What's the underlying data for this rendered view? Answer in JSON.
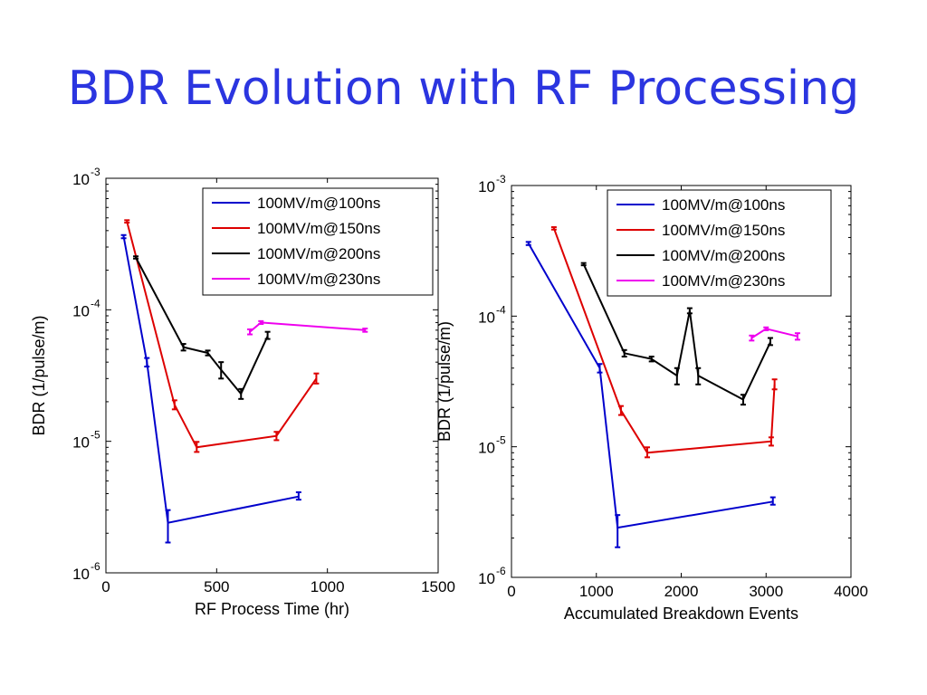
{
  "slide": {
    "title": "BDR Evolution with RF Processing"
  },
  "chart_data": [
    {
      "type": "line",
      "xlabel": "RF Process Time (hr)",
      "ylabel": "BDR (1/pulse/m)",
      "xlim": [
        0,
        1500
      ],
      "ylim": [
        1e-06,
        0.001
      ],
      "yscale": "log",
      "x_ticks": [
        "0",
        "500",
        "1000",
        "1500"
      ],
      "y_ticks": [
        {
          "base": "10",
          "exp": "-3"
        },
        {
          "base": "10",
          "exp": "-4"
        },
        {
          "base": "10",
          "exp": "-5"
        },
        {
          "base": "10",
          "exp": "-6"
        }
      ],
      "grid": false,
      "legend": "top-right",
      "series": [
        {
          "name": "100MV/m@100ns",
          "color": "#0000cc",
          "x": [
            80,
            185,
            280,
            870
          ],
          "y": [
            0.00036,
            4e-05,
            2.4e-06,
            3.8e-06
          ],
          "err_lo": [
            0.00035,
            3.7e-05,
            1.7e-06,
            3.6e-06
          ],
          "err_hi": [
            0.00037,
            4.3e-05,
            3e-06,
            4.1e-06
          ]
        },
        {
          "name": "100MV/m@150ns",
          "color": "#dd0000",
          "x": [
            95,
            310,
            410,
            770,
            950
          ],
          "y": [
            0.00047,
            1.9e-05,
            9e-06,
            1.1e-05,
            3e-05
          ],
          "err_lo": [
            0.00046,
            1.75e-05,
            8.3e-06,
            1.02e-05,
            2.75e-05
          ],
          "err_hi": [
            0.00048,
            2.05e-05,
            9.9e-06,
            1.18e-05,
            3.28e-05
          ]
        },
        {
          "name": "100MV/m@200ns",
          "color": "#000000",
          "x": [
            135,
            350,
            460,
            520,
            610,
            730
          ],
          "y": [
            0.00025,
            5.2e-05,
            4.7e-05,
            3.5e-05,
            2.3e-05,
            6.3e-05
          ],
          "err_lo": [
            0.000245,
            4.9e-05,
            4.5e-05,
            3e-05,
            2.1e-05,
            6e-05
          ],
          "err_hi": [
            0.000255,
            5.5e-05,
            4.9e-05,
            4e-05,
            2.5e-05,
            6.8e-05
          ]
        },
        {
          "name": "100MV/m@230ns",
          "color": "#ee00ee",
          "x": [
            650,
            700,
            1170
          ],
          "y": [
            6.8e-05,
            8e-05,
            7e-05
          ],
          "err_lo": [
            6.5e-05,
            7.8e-05,
            6.8e-05
          ],
          "err_hi": [
            7.1e-05,
            8.2e-05,
            7.2e-05
          ]
        }
      ]
    },
    {
      "type": "line",
      "xlabel": "Accumulated Breakdown Events",
      "ylabel": "BDR (1/pulse/m)",
      "xlim": [
        0,
        4000
      ],
      "ylim": [
        1e-06,
        0.001
      ],
      "yscale": "log",
      "x_ticks": [
        "0",
        "1000",
        "2000",
        "3000",
        "4000"
      ],
      "y_ticks": [
        {
          "base": "10",
          "exp": "-3"
        },
        {
          "base": "10",
          "exp": "-4"
        },
        {
          "base": "10",
          "exp": "-5"
        },
        {
          "base": "10",
          "exp": "-6"
        }
      ],
      "grid": false,
      "legend": "top-right",
      "series": [
        {
          "name": "100MV/m@100ns",
          "color": "#0000cc",
          "x": [
            200,
            1040,
            1250,
            3080
          ],
          "y": [
            0.00036,
            4e-05,
            2.4e-06,
            3.8e-06
          ],
          "err_lo": [
            0.00035,
            3.7e-05,
            1.7e-06,
            3.6e-06
          ],
          "err_hi": [
            0.00037,
            4.3e-05,
            3e-06,
            4.1e-06
          ]
        },
        {
          "name": "100MV/m@150ns",
          "color": "#dd0000",
          "x": [
            500,
            1290,
            1600,
            3060,
            3100
          ],
          "y": [
            0.00047,
            1.9e-05,
            9e-06,
            1.1e-05,
            3e-05
          ],
          "err_lo": [
            0.00046,
            1.75e-05,
            8.3e-06,
            1.02e-05,
            2.75e-05
          ],
          "err_hi": [
            0.00048,
            2.05e-05,
            9.9e-06,
            1.18e-05,
            3.28e-05
          ]
        },
        {
          "name": "100MV/m@200ns",
          "color": "#000000",
          "x": [
            850,
            1330,
            1650,
            1950,
            2100,
            2200,
            2730,
            3050
          ],
          "y": [
            0.00025,
            5.2e-05,
            4.7e-05,
            3.5e-05,
            0.00011,
            3.5e-05,
            2.3e-05,
            6.3e-05
          ],
          "err_lo": [
            0.000245,
            4.9e-05,
            4.5e-05,
            3e-05,
            0.000105,
            3e-05,
            2.1e-05,
            6e-05
          ],
          "err_hi": [
            0.000255,
            5.5e-05,
            4.9e-05,
            4e-05,
            0.000115,
            4e-05,
            2.5e-05,
            6.8e-05
          ]
        },
        {
          "name": "100MV/m@230ns",
          "color": "#ee00ee",
          "x": [
            2830,
            3000,
            3370
          ],
          "y": [
            6.8e-05,
            8e-05,
            7e-05
          ],
          "err_lo": [
            6.5e-05,
            7.8e-05,
            6.6e-05
          ],
          "err_hi": [
            7.1e-05,
            8.2e-05,
            7.4e-05
          ]
        }
      ]
    }
  ]
}
